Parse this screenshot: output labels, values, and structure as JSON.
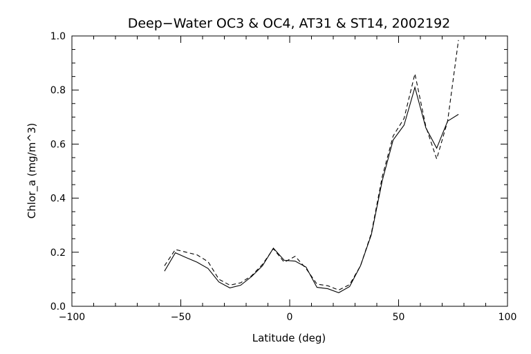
{
  "chart_data": {
    "type": "line",
    "title": "Deep−Water OC3 & OC4, AT31 & ST14, 2002192",
    "xlabel": "Latitude (deg)",
    "ylabel": "Chlor_a (mg/m^3)",
    "xlim": [
      -100,
      100
    ],
    "ylim": [
      0.0,
      1.0
    ],
    "xticks": [
      -100,
      -50,
      0,
      50,
      100
    ],
    "xtick_labels": [
      "−100",
      "−50",
      "0",
      "50",
      "100"
    ],
    "yticks": [
      0.0,
      0.2,
      0.4,
      0.6,
      0.8,
      1.0
    ],
    "ytick_labels": [
      "0.0",
      "0.2",
      "0.4",
      "0.6",
      "0.8",
      "1.0"
    ],
    "grid": false,
    "series": [
      {
        "style": "solid",
        "color": "#000000",
        "x": [
          -57.5,
          -52.5,
          -47.5,
          -42.5,
          -37.5,
          -32.5,
          -27.5,
          -22.5,
          -17.5,
          -12.5,
          -7.5,
          -2.5,
          2.5,
          7.5,
          12.5,
          17.5,
          22.5,
          27.5,
          32.5,
          37.5,
          42.5,
          47.5,
          52.5,
          57.5,
          62.5,
          67.5,
          72.5,
          77.5
        ],
        "y": [
          0.13,
          0.198,
          0.18,
          0.163,
          0.14,
          0.09,
          0.068,
          0.078,
          0.11,
          0.15,
          0.215,
          0.17,
          0.167,
          0.145,
          0.07,
          0.065,
          0.05,
          0.073,
          0.15,
          0.265,
          0.465,
          0.615,
          0.67,
          0.81,
          0.66,
          0.585,
          0.685,
          0.71
        ]
      },
      {
        "style": "dashed",
        "color": "#000000",
        "x": [
          -57.5,
          -52.5,
          -47.5,
          -42.5,
          -37.5,
          -32.5,
          -27.5,
          -22.5,
          -17.5,
          -12.5,
          -7.5,
          -2.5,
          2.5,
          7.5,
          12.5,
          17.5,
          22.5,
          27.5,
          32.5,
          37.5,
          42.5,
          47.5,
          52.5,
          57.5,
          62.5,
          67.5,
          72.5,
          77.5
        ],
        "y": [
          0.15,
          0.21,
          0.2,
          0.19,
          0.165,
          0.1,
          0.078,
          0.087,
          0.113,
          0.155,
          0.213,
          0.163,
          0.185,
          0.14,
          0.082,
          0.076,
          0.06,
          0.08,
          0.15,
          0.27,
          0.48,
          0.63,
          0.695,
          0.86,
          0.665,
          0.545,
          0.685,
          0.985
        ]
      }
    ]
  }
}
